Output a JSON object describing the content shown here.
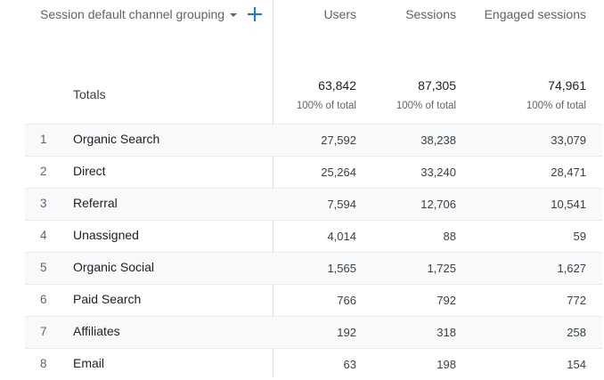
{
  "header": {
    "dimension_label": "Session default channel grouping",
    "dimension_dropdown_icon": "caret-down-icon",
    "add_dimension_icon": "plus-icon",
    "metrics": [
      "Users",
      "Sessions",
      "Engaged sessions"
    ]
  },
  "totals": {
    "label": "Totals",
    "users": "63,842",
    "users_pct": "100% of total",
    "sessions": "87,305",
    "sessions_pct": "100% of total",
    "engaged": "74,961",
    "engaged_pct": "100% of total"
  },
  "rows": [
    {
      "index": "1",
      "channel": "Organic Search",
      "users": "27,592",
      "sessions": "38,238",
      "engaged": "33,079"
    },
    {
      "index": "2",
      "channel": "Direct",
      "users": "25,264",
      "sessions": "33,240",
      "engaged": "28,471"
    },
    {
      "index": "3",
      "channel": "Referral",
      "users": "7,594",
      "sessions": "12,706",
      "engaged": "10,541"
    },
    {
      "index": "4",
      "channel": "Unassigned",
      "users": "4,014",
      "sessions": "88",
      "engaged": "59"
    },
    {
      "index": "5",
      "channel": "Organic Social",
      "users": "1,565",
      "sessions": "1,725",
      "engaged": "1,627"
    },
    {
      "index": "6",
      "channel": "Paid Search",
      "users": "766",
      "sessions": "792",
      "engaged": "772"
    },
    {
      "index": "7",
      "channel": "Affiliates",
      "users": "192",
      "sessions": "318",
      "engaged": "258"
    },
    {
      "index": "8",
      "channel": "Email",
      "users": "63",
      "sessions": "198",
      "engaged": "154"
    }
  ],
  "colors": {
    "accent": "#1a73e8",
    "row_shade": "#f8f9fa",
    "border": "#e8eaed",
    "header_text": "#5f6368"
  }
}
